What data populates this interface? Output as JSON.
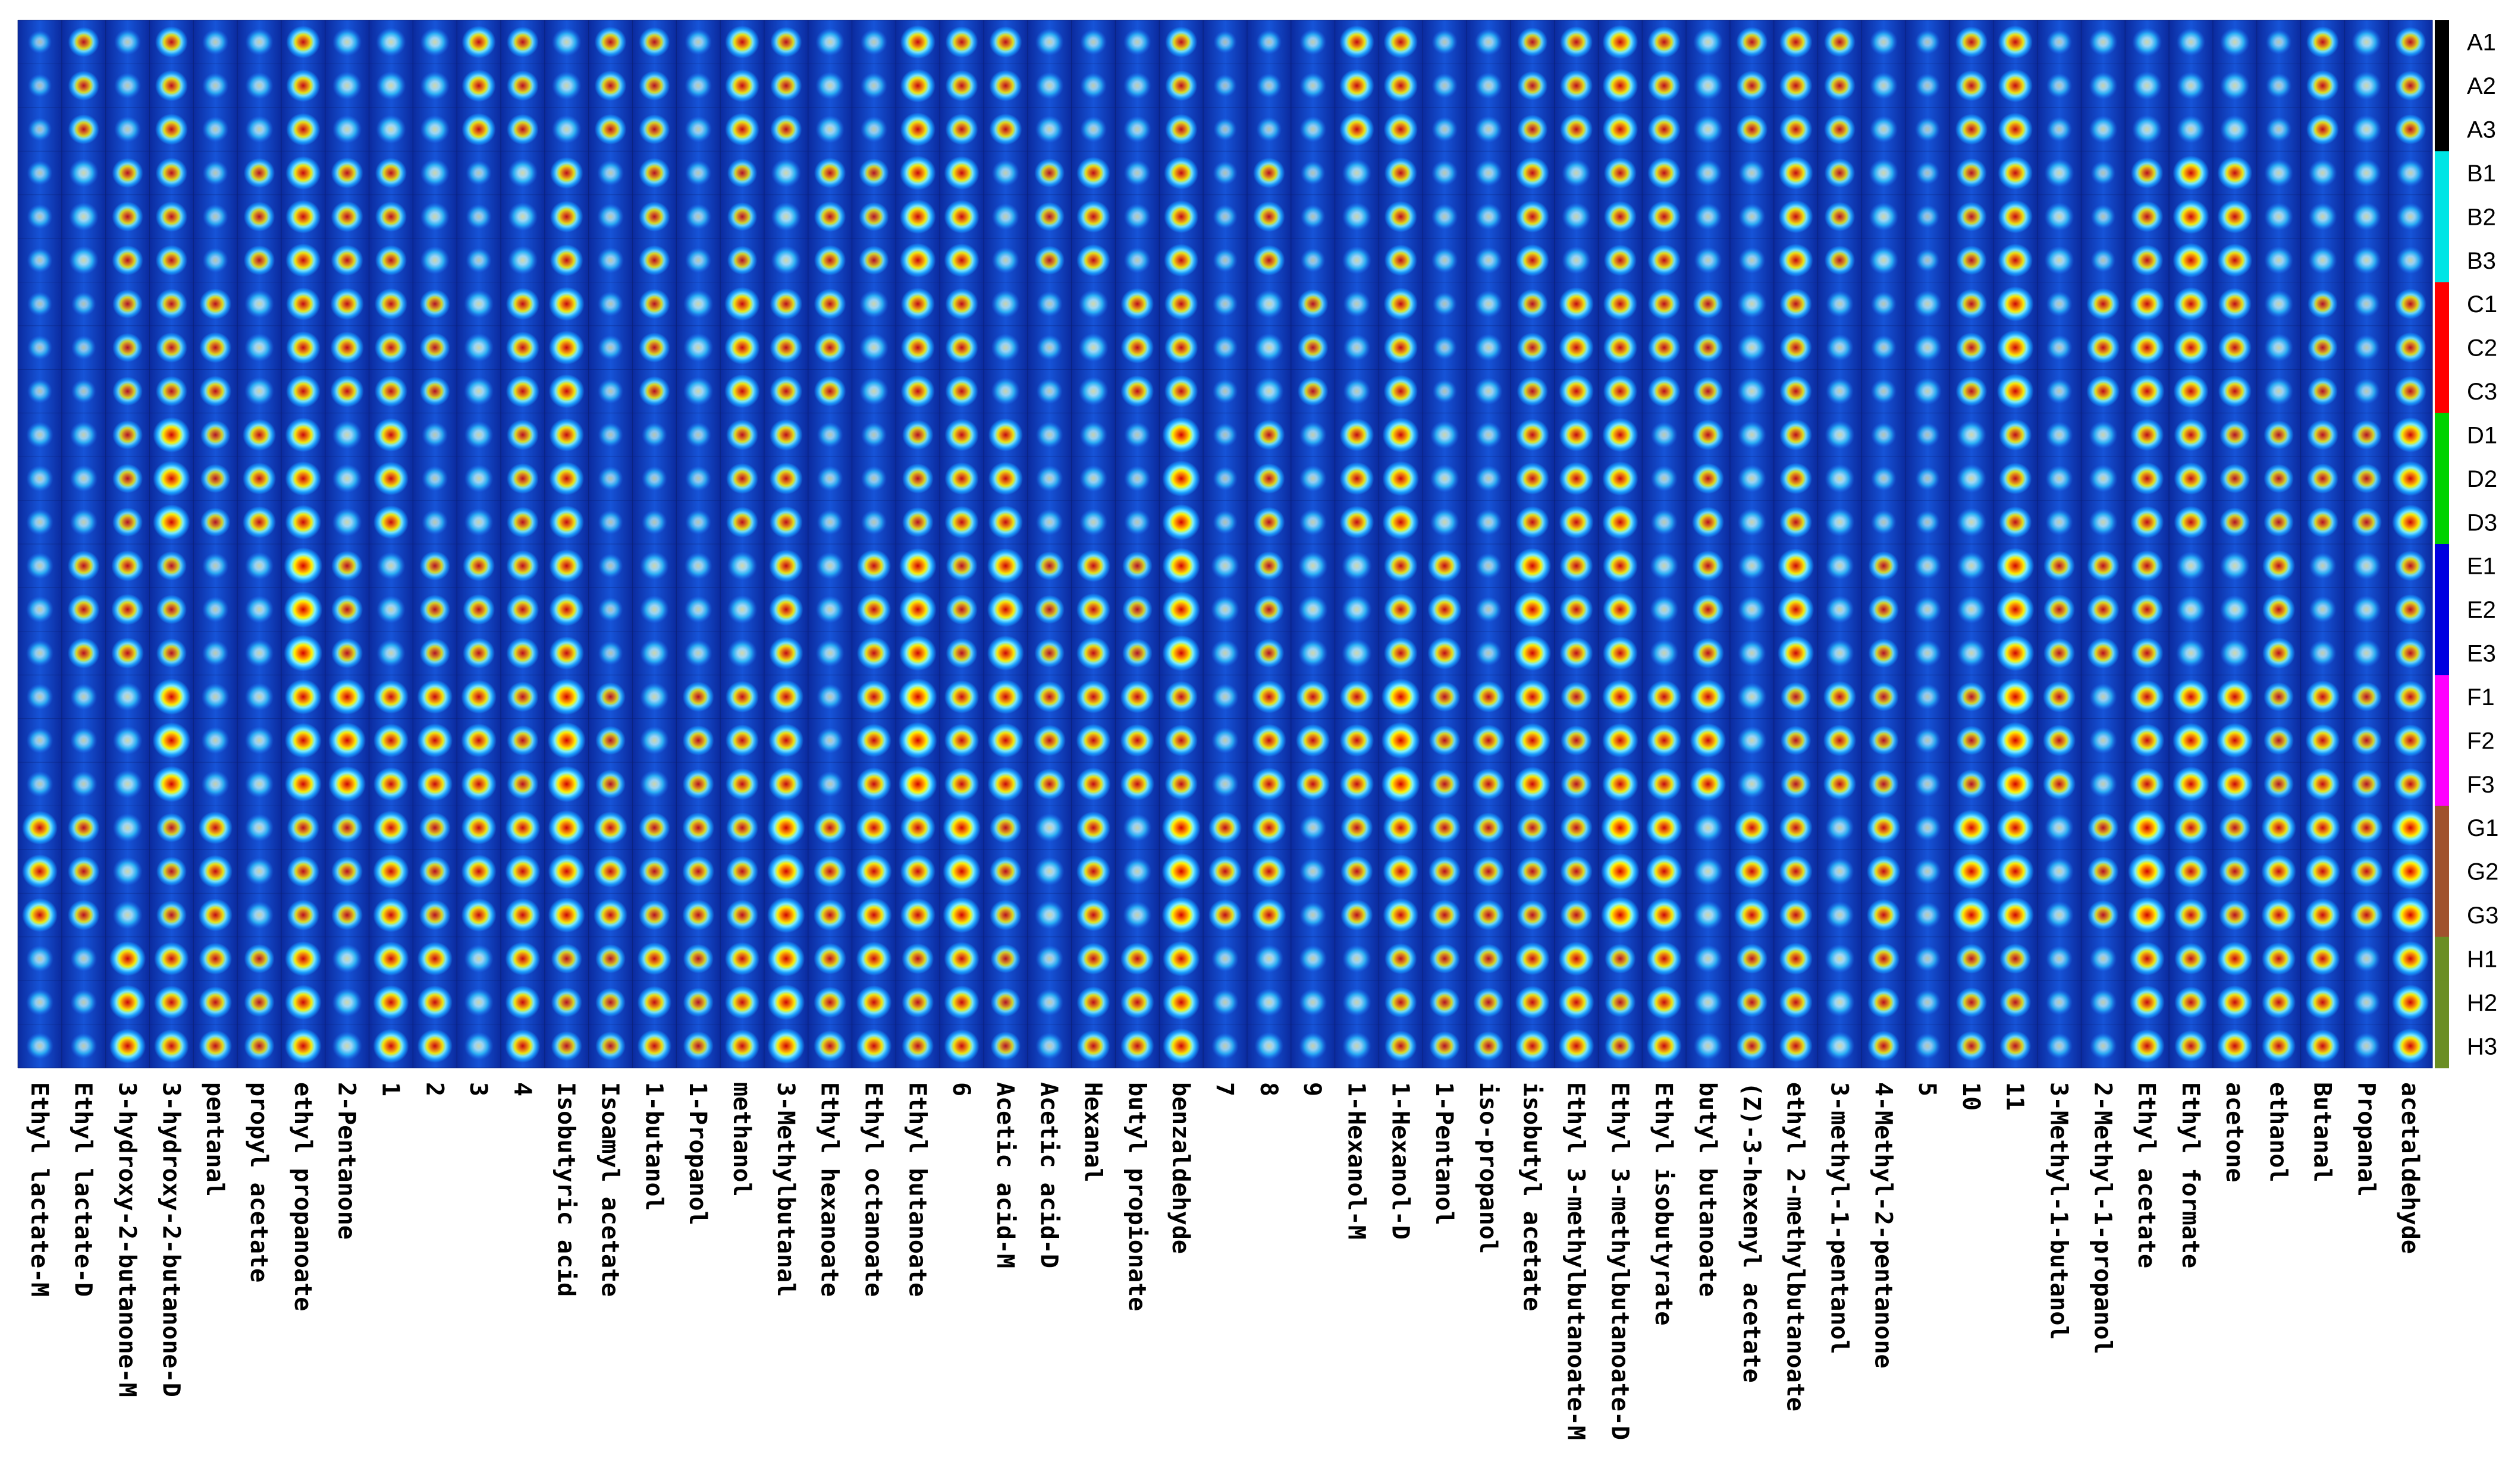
{
  "chart_data": {
    "type": "heatmap",
    "title": "",
    "description_of_values": "Gallery plot (fingerprint) of signal intensity for volatile compounds across samples; colour scale dark blue (low) to cyan, yellow, red (high)",
    "compounds": [
      "Ethyl lactate-M",
      "Ethyl lactate-D",
      "3-hydroxy-2-butanone-M",
      "3-hydroxy-2-butanone-D",
      "pentanal",
      "propyl acetate",
      "ethyl propanoate",
      "2-Pentanone",
      "1",
      "2",
      "3",
      "4",
      "Isobutyric acid",
      "Isoamyl acetate",
      "1-butanol",
      "1-Propanol",
      "methanol",
      "3-Methylbutanal",
      "Ethyl hexanoate",
      "Ethyl octanoate",
      "Ethyl butanoate",
      "6",
      "Acetic acid-M",
      "Acetic acid-D",
      "Hexanal",
      "butyl propionate",
      "benzaldehyde",
      "7",
      "8",
      "9",
      "1-Hexanol-M",
      "1-Hexanol-D",
      "1-Pentanol",
      "iso-propanol",
      "isobutyl acetate",
      "Ethyl 3-methylbutanoate-M",
      "Ethyl 3-methylbutanoate-D",
      "Ethyl isobutyrate",
      "butyl butanoate",
      "(Z)-3-hexenyl acetate",
      "ethyl 2-methylbutanoate",
      "3-methyl-1-pentanol",
      "4-Methyl-2-pentanone",
      "5",
      "10",
      "11",
      "3-Methyl-1-butanol",
      "2-Methyl-1-propanol",
      "Ethyl acetate",
      "Ethyl formate",
      "acetone",
      "ethanol",
      "Butanal",
      "Propanal",
      "acetaldehyde"
    ],
    "samples": [
      "A1",
      "A2",
      "A3",
      "B1",
      "B2",
      "B3",
      "C1",
      "C2",
      "C3",
      "D1",
      "D2",
      "D3",
      "E1",
      "E2",
      "E3",
      "F1",
      "F2",
      "F3",
      "G1",
      "G2",
      "G3",
      "H1",
      "H2",
      "H3"
    ],
    "groups": [
      {
        "name": "A",
        "color": "#000000"
      },
      {
        "name": "B",
        "color": "#00e5e5"
      },
      {
        "name": "C",
        "color": "#ff0000"
      },
      {
        "name": "D",
        "color": "#00d200"
      },
      {
        "name": "E",
        "color": "#0000e0"
      },
      {
        "name": "F",
        "color": "#ff00ff"
      },
      {
        "name": "G",
        "color": "#a0522d"
      },
      {
        "name": "H",
        "color": "#6b8e23"
      }
    ],
    "group_intensity": [
      [
        0.3,
        0.25,
        0.45,
        0.55,
        0.25,
        0.3,
        0.6,
        0.55,
        0.5,
        0.35,
        0.4,
        0.35,
        0.55,
        0.25
      ],
      [
        0.3,
        0.25,
        0.45,
        0.55,
        0.25,
        0.3,
        0.6,
        0.55,
        0.5,
        0.35,
        0.4,
        0.35,
        0.55,
        0.25
      ],
      [
        0.35,
        0.3,
        0.5,
        0.6,
        0.3,
        0.35,
        0.65,
        0.6,
        0.55,
        0.4,
        0.45,
        0.4,
        0.6,
        0.3
      ],
      [
        0.35,
        0.3,
        0.55,
        0.65,
        0.35,
        0.4,
        0.7,
        0.6,
        0.55,
        0.4,
        0.45,
        0.4,
        0.65,
        0.3
      ],
      [
        0.4,
        0.35,
        0.55,
        0.7,
        0.4,
        0.45,
        0.7,
        0.55,
        0.6,
        0.45,
        0.5,
        0.45,
        0.65,
        0.35
      ],
      [
        0.45,
        0.4,
        0.6,
        0.75,
        0.45,
        0.5,
        0.75,
        0.65,
        0.65,
        0.5,
        0.55,
        0.5,
        0.7,
        0.4
      ],
      [
        0.5,
        0.35,
        0.65,
        0.7,
        0.5,
        0.55,
        0.7,
        0.7,
        0.7,
        0.55,
        0.6,
        0.55,
        0.75,
        0.45
      ],
      [
        0.45,
        0.4,
        0.6,
        0.7,
        0.45,
        0.5,
        0.7,
        0.65,
        0.6,
        0.5,
        0.55,
        0.5,
        0.7,
        0.4
      ]
    ],
    "legend": "group colour bar at right with sample labels A1–H3",
    "xlabel": "",
    "ylabel": ""
  }
}
